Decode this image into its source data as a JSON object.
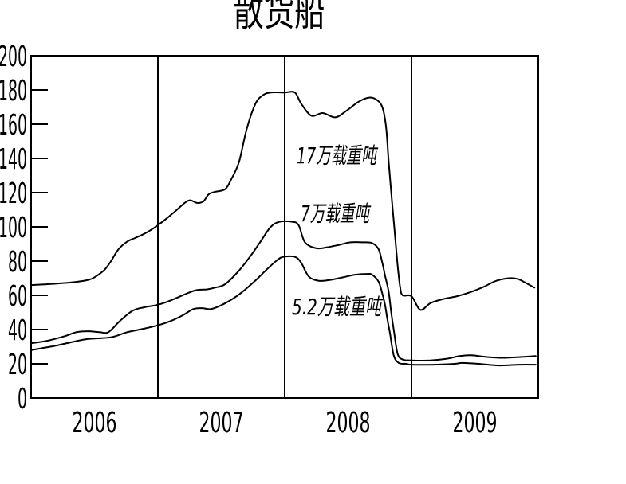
{
  "title": "散货船",
  "colors": {
    "background": "#ffffff",
    "line": "#000000",
    "text": "#000000"
  },
  "chart_data": {
    "type": "line",
    "title": "散货船",
    "xlabel": "",
    "ylabel": "",
    "xlim": [
      2006,
      2010
    ],
    "ylim": [
      0,
      200
    ],
    "yticks": [
      0,
      20,
      40,
      60,
      80,
      100,
      120,
      140,
      160,
      180,
      200
    ],
    "xtick_labels": [
      "2006",
      "2007",
      "2008",
      "2009"
    ],
    "year_dividers": [
      2007,
      2008,
      2009
    ],
    "grid": "vertical year-boundary lines only, full plot border with inward y-ticks",
    "legend_position": "inline text annotations near curves",
    "series": [
      {
        "name": "17万载重吨",
        "points": [
          [
            2006.0,
            66
          ],
          [
            2006.13,
            66.5
          ],
          [
            2006.31,
            67.5
          ],
          [
            2006.45,
            69
          ],
          [
            2006.51,
            71
          ],
          [
            2006.58,
            75
          ],
          [
            2006.63,
            80
          ],
          [
            2006.69,
            87
          ],
          [
            2006.76,
            91.5
          ],
          [
            2006.82,
            93.5
          ],
          [
            2006.88,
            95.5
          ],
          [
            2006.94,
            98
          ],
          [
            2007.0,
            101
          ],
          [
            2007.07,
            105
          ],
          [
            2007.15,
            110
          ],
          [
            2007.22,
            114.5
          ],
          [
            2007.26,
            115.5
          ],
          [
            2007.31,
            114
          ],
          [
            2007.36,
            115
          ],
          [
            2007.4,
            119
          ],
          [
            2007.45,
            120.5
          ],
          [
            2007.53,
            122
          ],
          [
            2007.58,
            128
          ],
          [
            2007.64,
            138
          ],
          [
            2007.7,
            157
          ],
          [
            2007.77,
            172
          ],
          [
            2007.83,
            177
          ],
          [
            2007.89,
            178.5
          ],
          [
            2008.0,
            178.5
          ],
          [
            2008.08,
            178.5
          ],
          [
            2008.13,
            172
          ],
          [
            2008.21,
            165
          ],
          [
            2008.3,
            166.5
          ],
          [
            2008.4,
            164
          ],
          [
            2008.49,
            168
          ],
          [
            2008.58,
            173
          ],
          [
            2008.66,
            175.5
          ],
          [
            2008.72,
            174.5
          ],
          [
            2008.77,
            170
          ],
          [
            2008.8,
            158
          ],
          [
            2008.82,
            138
          ],
          [
            2008.85,
            112
          ],
          [
            2008.87,
            95
          ],
          [
            2008.89,
            78
          ],
          [
            2008.91,
            65
          ],
          [
            2008.93,
            60
          ],
          [
            2009.0,
            59.5
          ],
          [
            2009.07,
            51.5
          ],
          [
            2009.15,
            55.5
          ],
          [
            2009.26,
            58
          ],
          [
            2009.36,
            59.5
          ],
          [
            2009.47,
            62
          ],
          [
            2009.57,
            65
          ],
          [
            2009.67,
            68.5
          ],
          [
            2009.77,
            70
          ],
          [
            2009.84,
            69.5
          ],
          [
            2009.92,
            66.5
          ],
          [
            2009.97,
            64.5
          ]
        ]
      },
      {
        "name": "7万载重吨",
        "points": [
          [
            2006.0,
            32
          ],
          [
            2006.13,
            33.5
          ],
          [
            2006.26,
            36
          ],
          [
            2006.36,
            38.5
          ],
          [
            2006.45,
            39
          ],
          [
            2006.54,
            38.5
          ],
          [
            2006.61,
            38.5
          ],
          [
            2006.7,
            45
          ],
          [
            2006.8,
            51
          ],
          [
            2006.89,
            53
          ],
          [
            2007.0,
            54.5
          ],
          [
            2007.1,
            57
          ],
          [
            2007.21,
            60.5
          ],
          [
            2007.3,
            63
          ],
          [
            2007.39,
            63.5
          ],
          [
            2007.45,
            64.5
          ],
          [
            2007.53,
            66.5
          ],
          [
            2007.64,
            74.5
          ],
          [
            2007.74,
            84
          ],
          [
            2007.81,
            91.5
          ],
          [
            2007.89,
            100
          ],
          [
            2007.96,
            103
          ],
          [
            2008.06,
            103
          ],
          [
            2008.11,
            101
          ],
          [
            2008.16,
            91
          ],
          [
            2008.25,
            87.5
          ],
          [
            2008.33,
            88
          ],
          [
            2008.43,
            89.5
          ],
          [
            2008.52,
            91
          ],
          [
            2008.62,
            91
          ],
          [
            2008.69,
            90.5
          ],
          [
            2008.74,
            87
          ],
          [
            2008.77,
            79
          ],
          [
            2008.79,
            72
          ],
          [
            2008.82,
            62
          ],
          [
            2008.84,
            50
          ],
          [
            2008.86,
            40
          ],
          [
            2008.89,
            26
          ],
          [
            2008.93,
            22.5
          ],
          [
            2009.0,
            22
          ],
          [
            2009.15,
            22
          ],
          [
            2009.28,
            23
          ],
          [
            2009.38,
            24.5
          ],
          [
            2009.47,
            25
          ],
          [
            2009.59,
            24
          ],
          [
            2009.72,
            23.5
          ],
          [
            2009.87,
            24
          ],
          [
            2009.98,
            24.5
          ]
        ]
      },
      {
        "name": "5.2万载重吨",
        "points": [
          [
            2006.0,
            28
          ],
          [
            2006.19,
            30.5
          ],
          [
            2006.31,
            32.5
          ],
          [
            2006.45,
            34.5
          ],
          [
            2006.63,
            35.5
          ],
          [
            2006.76,
            38.5
          ],
          [
            2006.89,
            40.5
          ],
          [
            2007.0,
            42.5
          ],
          [
            2007.1,
            45
          ],
          [
            2007.2,
            48.5
          ],
          [
            2007.28,
            52
          ],
          [
            2007.35,
            52.5
          ],
          [
            2007.42,
            52
          ],
          [
            2007.52,
            55
          ],
          [
            2007.64,
            60.5
          ],
          [
            2007.76,
            68
          ],
          [
            2007.85,
            74.5
          ],
          [
            2007.94,
            80.5
          ],
          [
            2007.99,
            82.5
          ],
          [
            2008.08,
            82.5
          ],
          [
            2008.13,
            79
          ],
          [
            2008.19,
            71
          ],
          [
            2008.27,
            68.5
          ],
          [
            2008.36,
            69
          ],
          [
            2008.46,
            70.5
          ],
          [
            2008.55,
            72
          ],
          [
            2008.65,
            72.5
          ],
          [
            2008.69,
            72
          ],
          [
            2008.74,
            68
          ],
          [
            2008.77,
            61
          ],
          [
            2008.79,
            55
          ],
          [
            2008.81,
            46
          ],
          [
            2008.83,
            38
          ],
          [
            2008.86,
            25
          ],
          [
            2008.9,
            20.5
          ],
          [
            2008.96,
            20
          ],
          [
            2009.0,
            19.5
          ],
          [
            2009.18,
            19.5
          ],
          [
            2009.34,
            20
          ],
          [
            2009.4,
            20.5
          ],
          [
            2009.53,
            20
          ],
          [
            2009.69,
            19
          ],
          [
            2009.85,
            19.5
          ],
          [
            2009.98,
            19.5
          ]
        ]
      }
    ]
  }
}
